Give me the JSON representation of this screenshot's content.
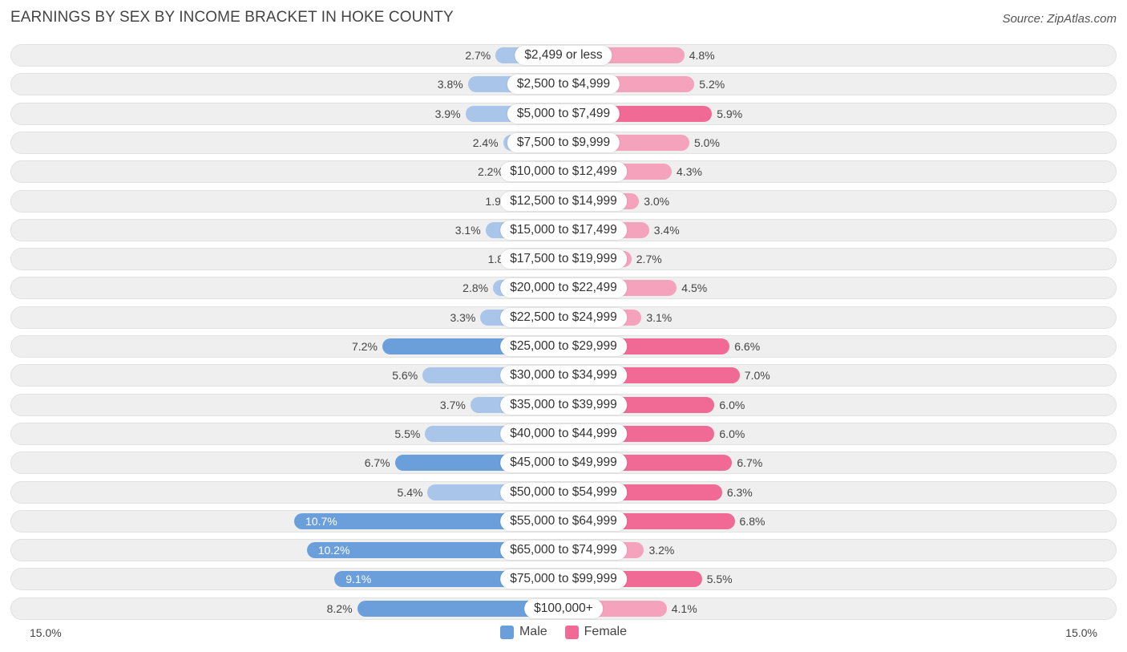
{
  "header": {
    "title": "EARNINGS BY SEX BY INCOME BRACKET IN HOKE COUNTY",
    "source": "Source: ZipAtlas.com"
  },
  "colors": {
    "male": "#6a9fdc",
    "male_light": "#a9c6ea",
    "female": "#f06a95",
    "female_light": "#f5a3bd"
  },
  "chart_data": {
    "type": "bar",
    "orientation": "horizontal-diverging",
    "title": "EARNINGS BY SEX BY INCOME BRACKET IN HOKE COUNTY",
    "xlim": [
      -15.0,
      15.0
    ],
    "axis_labels": {
      "left": "15.0%",
      "right": "15.0%"
    },
    "legend": [
      "Male",
      "Female"
    ],
    "legend_position": "bottom-center",
    "categories": [
      "$2,499 or less",
      "$2,500 to $4,999",
      "$5,000 to $7,499",
      "$7,500 to $9,999",
      "$10,000 to $12,499",
      "$12,500 to $14,999",
      "$15,000 to $17,499",
      "$17,500 to $19,999",
      "$20,000 to $22,499",
      "$22,500 to $24,999",
      "$25,000 to $29,999",
      "$30,000 to $34,999",
      "$35,000 to $39,999",
      "$40,000 to $44,999",
      "$45,000 to $49,999",
      "$50,000 to $54,999",
      "$55,000 to $64,999",
      "$65,000 to $74,999",
      "$75,000 to $99,999",
      "$100,000+"
    ],
    "series": [
      {
        "name": "Male",
        "values": [
          2.7,
          3.8,
          3.9,
          2.4,
          2.2,
          1.9,
          3.1,
          1.8,
          2.8,
          3.3,
          7.2,
          5.6,
          3.7,
          5.5,
          6.7,
          5.4,
          10.7,
          10.2,
          9.1,
          8.2
        ],
        "labels": [
          "2.7%",
          "3.8%",
          "3.9%",
          "2.4%",
          "2.2%",
          "1.9%",
          "3.1%",
          "1.8%",
          "2.8%",
          "3.3%",
          "7.2%",
          "5.6%",
          "3.7%",
          "5.5%",
          "6.7%",
          "5.4%",
          "10.7%",
          "10.2%",
          "9.1%",
          "8.2%"
        ]
      },
      {
        "name": "Female",
        "values": [
          4.8,
          5.2,
          5.9,
          5.0,
          4.3,
          3.0,
          3.4,
          2.7,
          4.5,
          3.1,
          6.6,
          7.0,
          6.0,
          6.0,
          6.7,
          6.3,
          6.8,
          3.2,
          5.5,
          4.1
        ],
        "labels": [
          "4.8%",
          "5.2%",
          "5.9%",
          "5.0%",
          "4.3%",
          "3.0%",
          "3.4%",
          "2.7%",
          "4.5%",
          "3.1%",
          "6.6%",
          "7.0%",
          "6.0%",
          "6.0%",
          "6.7%",
          "6.3%",
          "6.8%",
          "3.2%",
          "5.5%",
          "4.1%"
        ]
      }
    ]
  }
}
